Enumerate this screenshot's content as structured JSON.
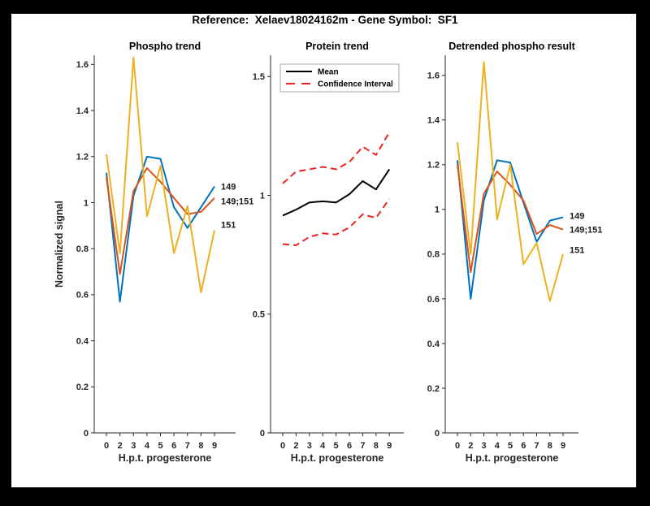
{
  "figure": {
    "title": "Reference:  Xelaev18024162m - Gene Symbol:  SF1",
    "background_color": "#000000",
    "canvas_color": "#ffffff",
    "axis_color": "#262626"
  },
  "chart_data": [
    {
      "type": "line",
      "title": "Phospho trend",
      "xlabel": "H.p.t. progesterone",
      "ylabel": "Normalized signal",
      "x_ticklabels": [
        "0",
        "2",
        "3",
        "4",
        "5",
        "6",
        "7",
        "8",
        "9"
      ],
      "ytick_values": [
        0,
        0.2,
        0.4,
        0.6,
        0.8,
        1.0,
        1.2,
        1.4,
        1.6
      ],
      "ytick_labels": [
        "0",
        "0.2",
        "0.4",
        "0.6",
        "0.8",
        "1",
        "1.2",
        "1.4",
        "1.6"
      ],
      "ylim": [
        0,
        1.64
      ],
      "grid": false,
      "series": [
        {
          "name": "149",
          "color": "#0072BD",
          "style": "solid",
          "end_label": "149",
          "values": [
            1.13,
            0.57,
            1.03,
            1.2,
            1.19,
            0.98,
            0.89,
            0.98,
            1.07
          ]
        },
        {
          "name": "149;151",
          "color": "#D95319",
          "style": "solid",
          "end_label": "149;151",
          "values": [
            1.11,
            0.69,
            1.05,
            1.15,
            1.09,
            1.02,
            0.95,
            0.96,
            1.02
          ]
        },
        {
          "name": "151",
          "color": "#EDB120",
          "style": "solid",
          "end_label": "151",
          "values": [
            1.21,
            0.78,
            1.63,
            0.94,
            1.16,
            0.78,
            0.985,
            0.61,
            0.88
          ]
        }
      ]
    },
    {
      "type": "line",
      "title": "Protein trend",
      "xlabel": "H.p.t. progesterone",
      "ylabel": "",
      "x_ticklabels": [
        "0",
        "2",
        "3",
        "4",
        "5",
        "6",
        "7",
        "8",
        "9"
      ],
      "ytick_values": [
        0,
        0.5,
        1.0,
        1.5
      ],
      "ytick_labels": [
        "0",
        "0.5",
        "1",
        "1.5"
      ],
      "ylim": [
        0,
        1.59
      ],
      "grid": false,
      "legend": {
        "position": "northwest",
        "entries": [
          {
            "label": "Mean",
            "color": "#000000",
            "style": "solid"
          },
          {
            "label": "Confidence Interval",
            "color": "#EF2220",
            "style": "dashed"
          }
        ]
      },
      "series": [
        {
          "name": "Mean",
          "color": "#000000",
          "style": "solid",
          "values": [
            0.915,
            0.94,
            0.97,
            0.975,
            0.97,
            1.005,
            1.06,
            1.025,
            1.11
          ]
        },
        {
          "name": "CI upper",
          "color": "#EF2220",
          "style": "dashed",
          "values": [
            1.05,
            1.1,
            1.11,
            1.12,
            1.11,
            1.14,
            1.205,
            1.17,
            1.265
          ]
        },
        {
          "name": "CI lower",
          "color": "#EF2220",
          "style": "dashed",
          "values": [
            0.795,
            0.79,
            0.825,
            0.84,
            0.835,
            0.865,
            0.92,
            0.905,
            0.985
          ]
        }
      ]
    },
    {
      "type": "line",
      "title": "Detrended phospho result",
      "xlabel": "H.p.t. progesterone",
      "ylabel": "",
      "x_ticklabels": [
        "0",
        "2",
        "3",
        "4",
        "5",
        "6",
        "7",
        "8",
        "9"
      ],
      "ytick_values": [
        0,
        0.2,
        0.4,
        0.6,
        0.8,
        1.0,
        1.2,
        1.4,
        1.6
      ],
      "ytick_labels": [
        "0",
        "0.2",
        "0.4",
        "0.6",
        "0.8",
        "1",
        "1.2",
        "1.4",
        "1.6"
      ],
      "ylim": [
        0,
        1.69
      ],
      "grid": false,
      "series": [
        {
          "name": "149",
          "color": "#0072BD",
          "style": "solid",
          "end_label": "149",
          "values": [
            1.22,
            0.6,
            1.04,
            1.22,
            1.21,
            1.03,
            0.855,
            0.95,
            0.965
          ]
        },
        {
          "name": "149;151",
          "color": "#D95319",
          "style": "solid",
          "end_label": "149;151",
          "values": [
            1.2,
            0.72,
            1.07,
            1.17,
            1.11,
            1.04,
            0.89,
            0.93,
            0.91
          ]
        },
        {
          "name": "151",
          "color": "#EDB120",
          "style": "solid",
          "end_label": "151",
          "values": [
            1.3,
            0.8,
            1.66,
            0.955,
            1.2,
            0.755,
            0.85,
            0.59,
            0.8
          ]
        }
      ]
    }
  ]
}
